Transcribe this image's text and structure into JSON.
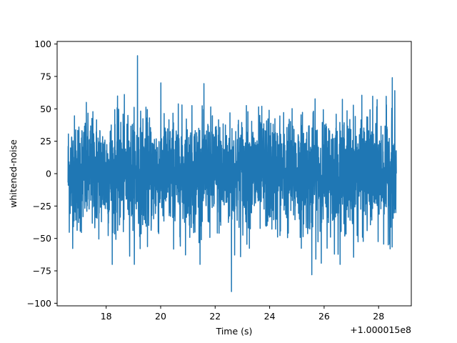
{
  "chart_data": {
    "type": "line",
    "title": "",
    "xlabel": "Time (s)",
    "ylabel": "whitened-noise",
    "x_offset_label": "+1.000015e8",
    "xlim": [
      16.2,
      29.2
    ],
    "ylim": [
      -102,
      102
    ],
    "x_range": [
      16.6,
      28.65
    ],
    "x_ticks": [
      18,
      20,
      22,
      24,
      26,
      28
    ],
    "y_ticks": [
      -100,
      -75,
      -50,
      -25,
      0,
      25,
      50,
      75,
      100
    ],
    "grid": false,
    "legend": "none",
    "line_color": "#1f77b4",
    "noise_std": 22,
    "notable_peaks": [
      {
        "x": 19.15,
        "y": 91
      },
      {
        "x": 22.6,
        "y": -91
      },
      {
        "x": 25.55,
        "y": -78
      },
      {
        "x": 28.5,
        "y": 74
      }
    ]
  }
}
